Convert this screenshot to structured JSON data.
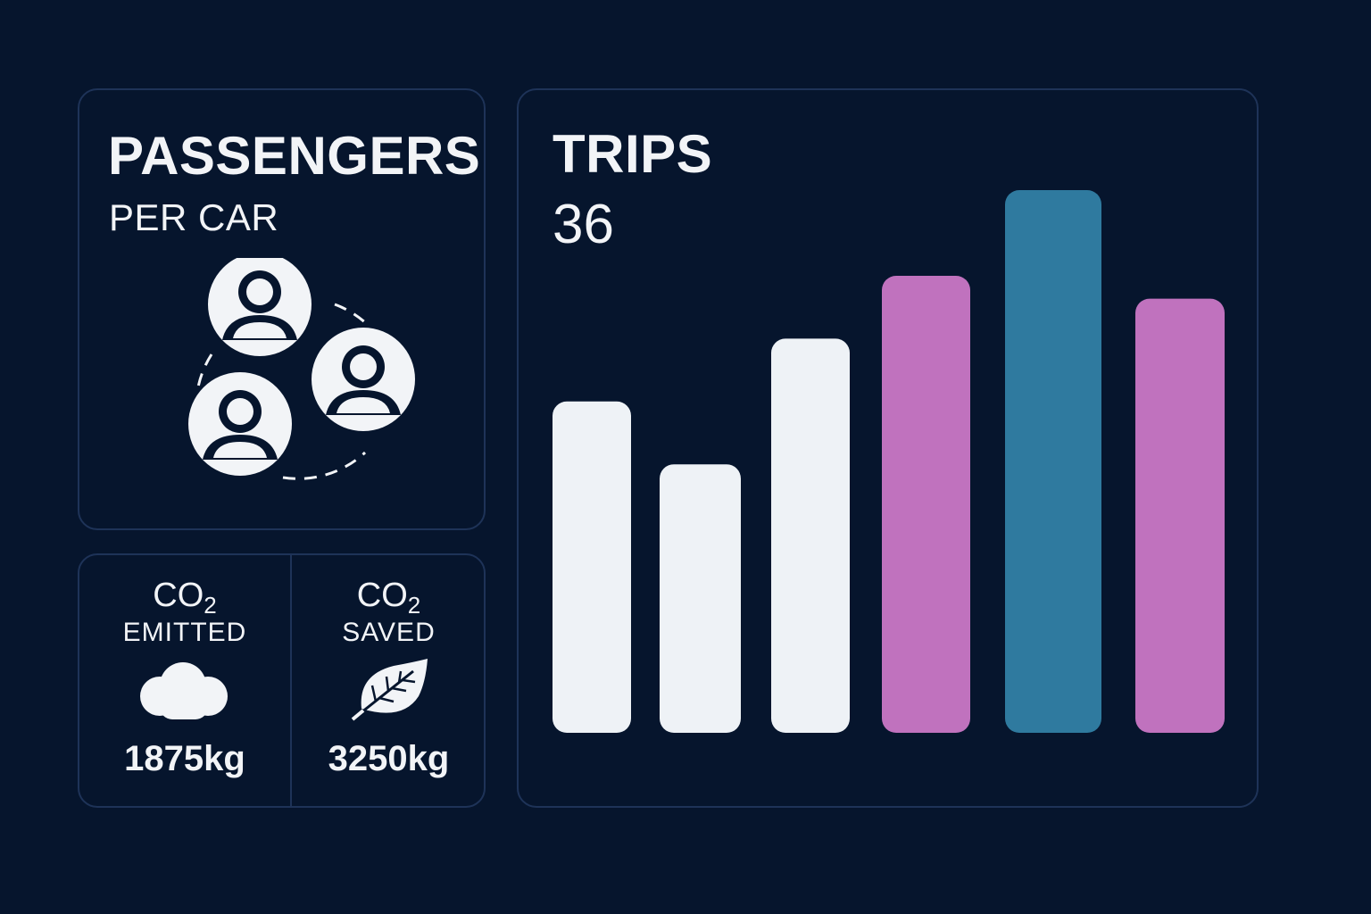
{
  "passengers_card": {
    "title": "PASSENGERS",
    "subtitle": "PER CAR",
    "icon": "group-of-people-icon"
  },
  "co2_card": {
    "emitted": {
      "label_main": "CO",
      "label_sub": "2",
      "caption": "EMITTED",
      "value": "1875kg",
      "icon": "cloud-icon"
    },
    "saved": {
      "label_main": "CO",
      "label_sub": "2",
      "caption": "SAVED",
      "value": "3250kg",
      "icon": "leaf-icon"
    }
  },
  "trips_card": {
    "title": "TRIPS",
    "value": "36"
  },
  "chart_data": {
    "type": "bar",
    "title": "TRIPS",
    "ylim": [
      0,
      10
    ],
    "grid": false,
    "series": [
      {
        "values": [
          5.8,
          4.7,
          6.9,
          8.0,
          9.5,
          7.6
        ],
        "colors": [
          "#eef2f6",
          "#eef2f6",
          "#eef2f6",
          "#c072be",
          "#2f7a9f",
          "#c072be"
        ]
      }
    ]
  },
  "colors": {
    "background": "#06152d",
    "card_border": "#1e3358",
    "text": "#f2f4f7",
    "bar_light": "#eef2f6",
    "bar_pink": "#c072be",
    "bar_blue": "#2f7a9f"
  }
}
